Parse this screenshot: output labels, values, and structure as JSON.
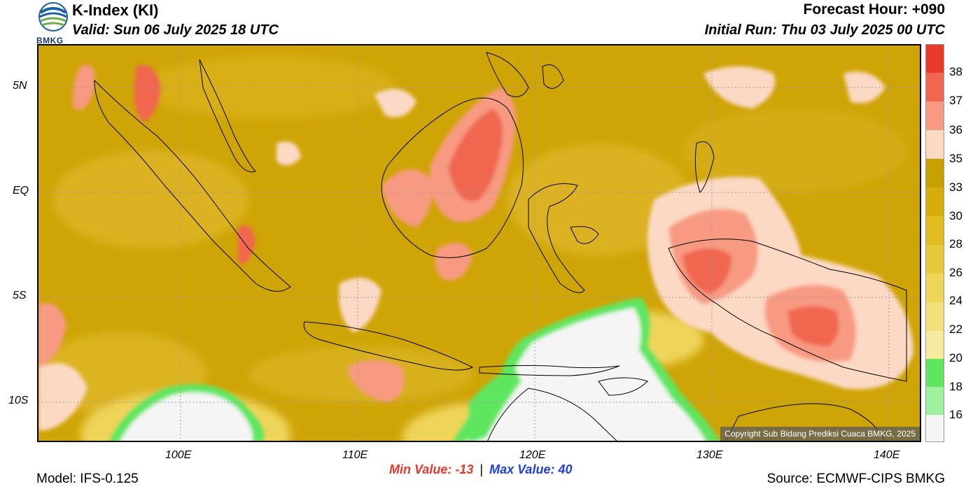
{
  "header": {
    "title": "K-Index (KI)",
    "valid": "Valid: Sun 06 July 2025 18 UTC",
    "forecast_hour": "Forecast Hour: +090",
    "initial_run": "Initial Run: Thu 03 July 2025 00 UTC",
    "logo_text": "BMKG"
  },
  "map": {
    "lat_labels": [
      "5N",
      "EQ",
      "5S",
      "10S"
    ],
    "lon_labels": [
      "100E",
      "110E",
      "120E",
      "130E",
      "140E"
    ],
    "copyright": "Copyright Sub Bidang Prediksi Cuaca BMKG, 2025"
  },
  "colorbar": {
    "labels": [
      "38",
      "37",
      "36",
      "35",
      "33",
      "30",
      "28",
      "26",
      "24",
      "22",
      "20",
      "18",
      "16"
    ],
    "colors": [
      "#e8392a",
      "#f06650",
      "#f89a82",
      "#fcd9c5",
      "#c8a000",
      "#d6ad0a",
      "#e2bd22",
      "#e9c93c",
      "#efd45a",
      "#f3df7c",
      "#f8ea9e",
      "#5ee65e",
      "#9ef29e",
      "#f5f5f5"
    ]
  },
  "footer": {
    "model": "Model: IFS-0.125",
    "min_value": "Min Value: -13",
    "separator": "|",
    "max_value": "Max Value:  40",
    "source": "Source: ECMWF-CIPS BMKG"
  }
}
